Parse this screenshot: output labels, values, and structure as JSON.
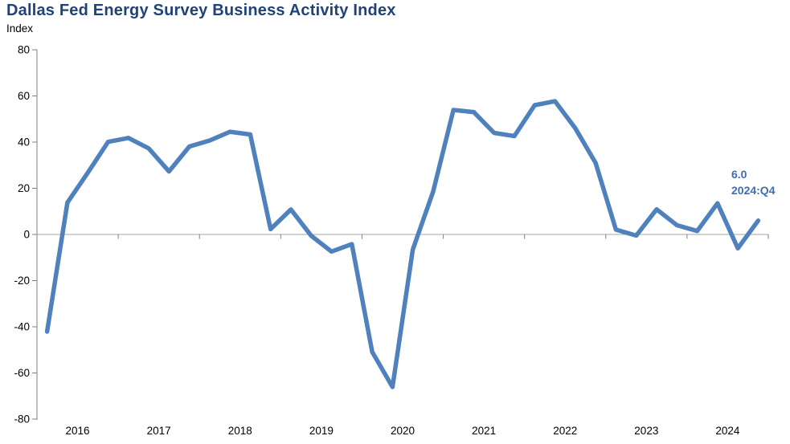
{
  "title": "Dallas Fed Energy Survey Business Activity Index",
  "y_axis_unit": "Index",
  "annotation": {
    "value": "6.0",
    "period": "2024:Q4"
  },
  "colors": {
    "background": "#ffffff",
    "title": "#1f4278",
    "subtitle": "#000000",
    "line": "#4f81bd",
    "annotation": "#3e6db2",
    "axis": "#808080",
    "zero_line": "#a6a6a6",
    "tick_label": "#000000"
  },
  "chart_data": {
    "type": "line",
    "series_name": "Business Activity Index",
    "frequency": "quarterly",
    "title": "Dallas Fed Energy Survey Business Activity Index",
    "ylabel": "Index",
    "ylim": [
      -80,
      80
    ],
    "y_ticks": [
      80,
      60,
      40,
      20,
      0,
      -20,
      -40,
      -60,
      -80
    ],
    "x_tick_labels": [
      "2016",
      "2017",
      "2018",
      "2019",
      "2020",
      "2021",
      "2022",
      "2023",
      "2024"
    ],
    "grid": "zero-line-only",
    "legend": "none",
    "last_point_annotation": "6.0 2024:Q4",
    "periods": [
      "2016:Q1",
      "2016:Q2",
      "2016:Q3",
      "2016:Q4",
      "2017:Q1",
      "2017:Q2",
      "2017:Q3",
      "2017:Q4",
      "2018:Q1",
      "2018:Q2",
      "2018:Q3",
      "2018:Q4",
      "2019:Q1",
      "2019:Q2",
      "2019:Q3",
      "2019:Q4",
      "2020:Q1",
      "2020:Q2",
      "2020:Q3",
      "2020:Q4",
      "2021:Q1",
      "2021:Q2",
      "2021:Q3",
      "2021:Q4",
      "2022:Q1",
      "2022:Q2",
      "2022:Q3",
      "2022:Q4",
      "2023:Q1",
      "2023:Q2",
      "2023:Q3",
      "2023:Q4",
      "2024:Q1",
      "2024:Q2",
      "2024:Q3",
      "2024:Q4"
    ],
    "values": [
      -42.1,
      13.8,
      26.7,
      40.1,
      41.8,
      37.3,
      27.3,
      38.1,
      40.7,
      44.5,
      43.3,
      2.3,
      10.8,
      -0.6,
      -7.4,
      -4.2,
      -50.9,
      -66.1,
      -6.6,
      18.5,
      53.9,
      53.0,
      44.0,
      42.6,
      56.0,
      57.7,
      46.0,
      31.0,
      2.1,
      -0.5,
      10.9,
      4.0,
      1.5,
      13.5,
      -6.0,
      6.0
    ]
  }
}
